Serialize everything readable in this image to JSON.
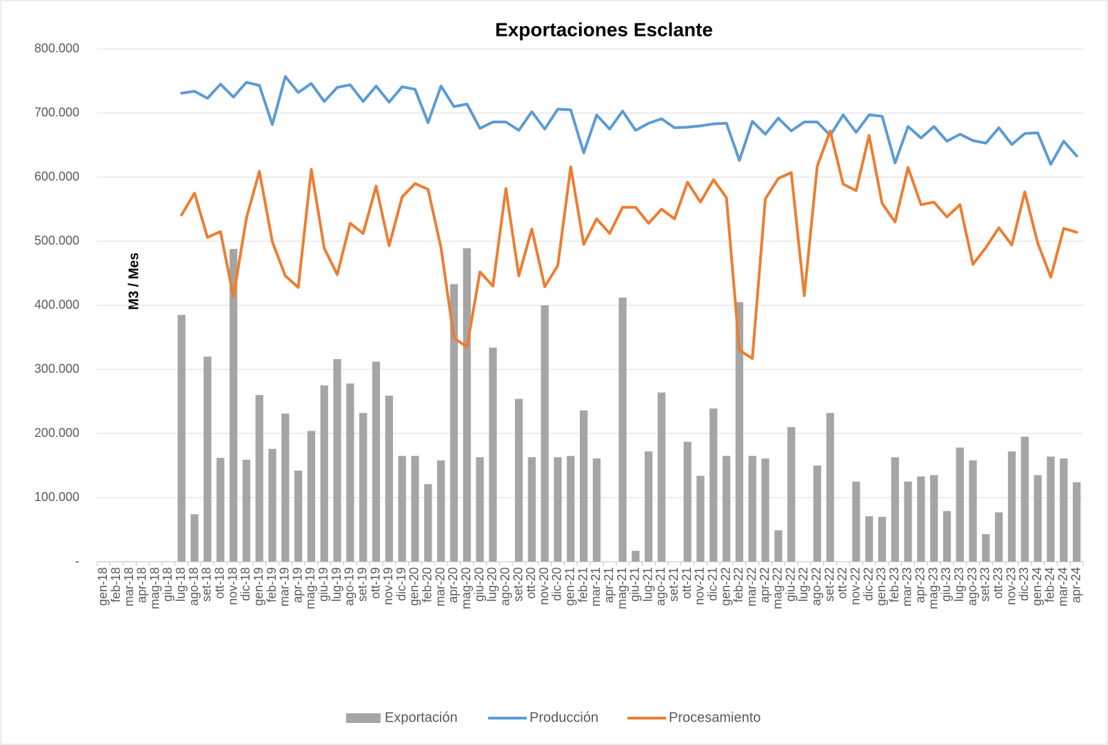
{
  "chart_data": {
    "type": "bar",
    "title": "Exportaciones Esclante",
    "y_label": "M3 / Mes",
    "categories": [
      "gen-18",
      "feb-18",
      "mar-18",
      "apr-18",
      "mag-18",
      "giu-18",
      "lug-18",
      "ago-18",
      "set-18",
      "ott-18",
      "nov-18",
      "dic-18",
      "gen-19",
      "feb-19",
      "mar-19",
      "apr-19",
      "mag-19",
      "giu-19",
      "lug-19",
      "ago-19",
      "set-19",
      "ott-19",
      "nov-19",
      "dic-19",
      "gen-20",
      "feb-20",
      "mar-20",
      "apr-20",
      "mag-20",
      "giu-20",
      "lug-20",
      "ago-20",
      "set-20",
      "ott-20",
      "nov-20",
      "dic-20",
      "gen-21",
      "feb-21",
      "mar-21",
      "apr-21",
      "mag-21",
      "giu-21",
      "lug-21",
      "ago-21",
      "set-21",
      "ott-21",
      "nov-21",
      "dic-21",
      "gen-22",
      "feb-22",
      "mar-22",
      "apr-22",
      "mag-22",
      "giu-22",
      "lug-22",
      "ago-22",
      "set-22",
      "ott-22",
      "nov-22",
      "dic-22",
      "gen-23",
      "feb-23",
      "mar-23",
      "apr-23",
      "mag-23",
      "giu-23",
      "lug-23",
      "ago-23",
      "set-23",
      "ott-23",
      "nov-23",
      "dic-23",
      "gen-24",
      "feb-24",
      "mar-24",
      "apr-24"
    ],
    "series": [
      {
        "name": "Exportación",
        "type": "bar",
        "color": "#a5a5a5",
        "values": [
          null,
          null,
          null,
          null,
          null,
          null,
          385000,
          74000,
          320000,
          162000,
          488000,
          159000,
          260000,
          176000,
          231000,
          142000,
          204000,
          275000,
          316000,
          278000,
          232000,
          312000,
          259000,
          165000,
          165000,
          121000,
          158000,
          433000,
          489000,
          163000,
          334000,
          null,
          254000,
          163000,
          400000,
          163000,
          165000,
          236000,
          161000,
          null,
          412000,
          17000,
          172000,
          264000,
          null,
          187000,
          134000,
          239000,
          165000,
          405000,
          165000,
          161000,
          49000,
          210000,
          null,
          150000,
          232000,
          null,
          125000,
          71000,
          70000,
          163000,
          125000,
          133000,
          135000,
          79000,
          178000,
          158000,
          43000,
          77000,
          172000,
          195000,
          135000,
          164000,
          161000,
          124000
        ]
      },
      {
        "name": "Producción",
        "type": "line",
        "color": "#5b9bd5",
        "values": [
          null,
          null,
          null,
          null,
          null,
          null,
          731000,
          734000,
          723000,
          745000,
          725000,
          748000,
          743000,
          682000,
          757000,
          732000,
          746000,
          718000,
          740000,
          744000,
          718000,
          742000,
          717000,
          741000,
          737000,
          685000,
          742000,
          710000,
          714000,
          676000,
          686000,
          686000,
          673000,
          702000,
          675000,
          706000,
          705000,
          638000,
          697000,
          675000,
          703000,
          673000,
          684000,
          691000,
          677000,
          678000,
          680000,
          683000,
          684000,
          626000,
          687000,
          667000,
          692000,
          672000,
          686000,
          686000,
          665000,
          697000,
          670000,
          697000,
          695000,
          622000,
          679000,
          661000,
          679000,
          656000,
          667000,
          657000,
          653000,
          677000,
          651000,
          668000,
          669000,
          620000,
          656000,
          633000
        ]
      },
      {
        "name": "Procesamiento",
        "type": "line",
        "color": "#ed7d31",
        "values": [
          null,
          null,
          null,
          null,
          null,
          null,
          541000,
          575000,
          506000,
          515000,
          413000,
          536000,
          609000,
          499000,
          446000,
          428000,
          612000,
          489000,
          448000,
          528000,
          512000,
          586000,
          493000,
          569000,
          590000,
          581000,
          490000,
          349000,
          335000,
          452000,
          430000,
          582000,
          446000,
          519000,
          429000,
          462000,
          616000,
          495000,
          535000,
          512000,
          553000,
          553000,
          528000,
          550000,
          535000,
          592000,
          561000,
          596000,
          568000,
          330000,
          317000,
          566000,
          598000,
          607000,
          415000,
          617000,
          672000,
          589000,
          579000,
          665000,
          559000,
          530000,
          615000,
          557000,
          561000,
          538000,
          557000,
          464000,
          490000,
          521000,
          494000,
          577000,
          497000,
          444000,
          520000,
          514000
        ]
      }
    ],
    "ylim": [
      0,
      800000
    ],
    "yticks": [
      {
        "value": 0,
        "label": "-"
      },
      {
        "value": 100000,
        "label": "100.000"
      },
      {
        "value": 200000,
        "label": "200.000"
      },
      {
        "value": 300000,
        "label": "300.000"
      },
      {
        "value": 400000,
        "label": "400.000"
      },
      {
        "value": 500000,
        "label": "500.000"
      },
      {
        "value": 600000,
        "label": "600.000"
      },
      {
        "value": 700000,
        "label": "700.000"
      },
      {
        "value": 800000,
        "label": "800.000"
      }
    ],
    "grid": true,
    "legend": "bottom"
  }
}
